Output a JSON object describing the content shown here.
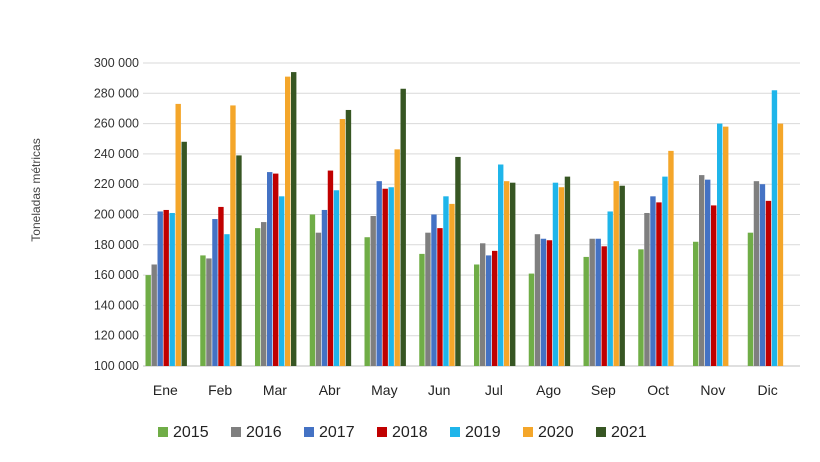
{
  "chart_data": {
    "type": "bar",
    "title": "",
    "xlabel": "",
    "ylabel": "Toneladas métricas",
    "ylim": [
      100000,
      300000
    ],
    "yticks": [
      "100 000",
      "120 000",
      "140 000",
      "160 000",
      "180 000",
      "200 000",
      "220 000",
      "240 000",
      "260 000",
      "280 000",
      "300 000"
    ],
    "ytick_values": [
      100000,
      120000,
      140000,
      160000,
      180000,
      200000,
      220000,
      240000,
      260000,
      280000,
      300000
    ],
    "grid": true,
    "legend_position": "bottom",
    "categories": [
      "Ene",
      "Feb",
      "Mar",
      "Abr",
      "May",
      "Jun",
      "Jul",
      "Ago",
      "Sep",
      "Oct",
      "Nov",
      "Dic"
    ],
    "series": [
      {
        "name": "2015",
        "color": "#70AD47",
        "values": [
          160000,
          173000,
          191000,
          200000,
          185000,
          174000,
          167000,
          161000,
          172000,
          177000,
          182000,
          188000
        ]
      },
      {
        "name": "2016",
        "color": "#7F7F7F",
        "values": [
          167000,
          171000,
          195000,
          188000,
          199000,
          188000,
          181000,
          187000,
          184000,
          201000,
          226000,
          222000
        ]
      },
      {
        "name": "2017",
        "color": "#4472C4",
        "values": [
          202000,
          197000,
          228000,
          203000,
          222000,
          200000,
          173000,
          184000,
          184000,
          212000,
          223000,
          220000
        ]
      },
      {
        "name": "2018",
        "color": "#C00000",
        "values": [
          203000,
          205000,
          227000,
          229000,
          217000,
          191000,
          176000,
          183000,
          179000,
          208000,
          206000,
          209000
        ]
      },
      {
        "name": "2019",
        "color": "#1FB5EA",
        "values": [
          201000,
          187000,
          212000,
          216000,
          218000,
          212000,
          233000,
          221000,
          202000,
          225000,
          260000,
          282000
        ]
      },
      {
        "name": "2020",
        "color": "#F4A62A",
        "values": [
          273000,
          272000,
          291000,
          263000,
          243000,
          207000,
          222000,
          218000,
          222000,
          242000,
          258000,
          260000
        ]
      },
      {
        "name": "2021",
        "color": "#375623",
        "values": [
          248000,
          239000,
          294000,
          269000,
          283000,
          238000,
          221000,
          225000,
          219000,
          null,
          null,
          null
        ]
      }
    ]
  }
}
